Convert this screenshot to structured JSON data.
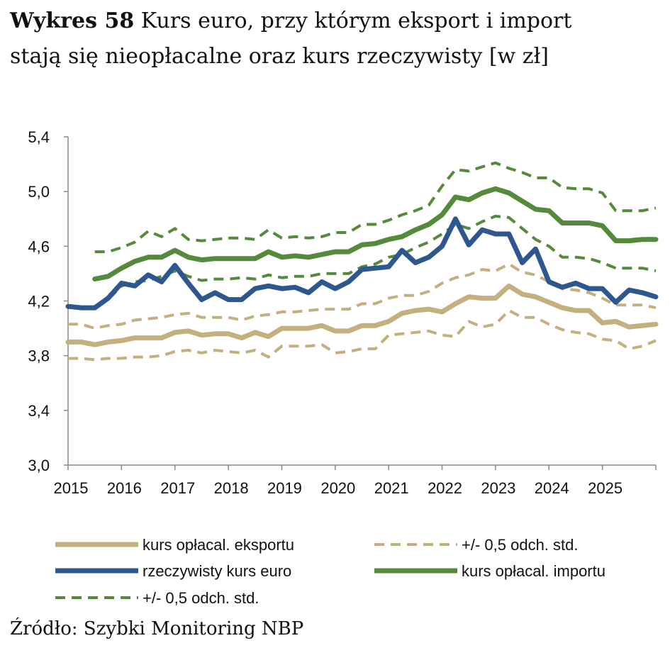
{
  "title_bold": "Wykres 58",
  "title_rest": " Kurs euro, przy którym eksport i import",
  "title_line2": "stają się nieopłacalne oraz kurs rzeczywisty [w zł]",
  "source": "Źródło: Szybki Monitoring NBP",
  "colors": {
    "export": "#C4B07F",
    "real": "#2E5790",
    "import": "#548A3A"
  },
  "chart_data": {
    "type": "line",
    "title": "Kurs euro, przy którym eksport i import stają się nieopłacalne oraz kurs rzeczywisty [w zł]",
    "xlabel": "",
    "ylabel": "",
    "frequency": "quarterly",
    "x_start": 2015.0,
    "x_step": 0.25,
    "xlim": [
      2015,
      2026
    ],
    "ylim": [
      3.0,
      5.4
    ],
    "x_tick_labels": [
      "2015",
      "2016",
      "2017",
      "2018",
      "2019",
      "2020",
      "2021",
      "2022",
      "2023",
      "2024",
      "2025"
    ],
    "y_tick_labels": [
      "3,0",
      "3,4",
      "3,8",
      "4,2",
      "4,6",
      "5,0",
      "5,4"
    ],
    "y_ticks": [
      3.0,
      3.4,
      3.8,
      4.2,
      4.6,
      5.0,
      5.4
    ],
    "grid": false,
    "legend_position": "bottom",
    "series": [
      {
        "name": "kurs opłacal. eksportu",
        "color": "#C4B07F",
        "style": "solid",
        "values": [
          3.9,
          3.9,
          3.88,
          3.9,
          3.91,
          3.93,
          3.93,
          3.93,
          3.97,
          3.98,
          3.95,
          3.96,
          3.96,
          3.93,
          3.97,
          3.94,
          4.0,
          4.0,
          4.0,
          4.02,
          3.98,
          3.98,
          4.02,
          4.02,
          4.05,
          4.11,
          4.13,
          4.14,
          4.12,
          4.18,
          4.23,
          4.22,
          4.22,
          4.31,
          4.25,
          4.23,
          4.19,
          4.15,
          4.13,
          4.13,
          4.04,
          4.05,
          4.01,
          4.02,
          4.03
        ]
      },
      {
        "name": "+/- 0,5 odch. std.",
        "color": "#C4B07F",
        "style": "dashed",
        "values": [
          4.03,
          4.03,
          4.0,
          4.02,
          4.03,
          4.06,
          4.07,
          4.08,
          4.1,
          4.11,
          4.08,
          4.08,
          4.08,
          4.06,
          4.09,
          4.1,
          4.12,
          4.12,
          4.13,
          4.14,
          4.14,
          4.14,
          4.18,
          4.18,
          4.22,
          4.24,
          4.24,
          4.27,
          4.33,
          4.37,
          4.39,
          4.43,
          4.42,
          4.47,
          4.41,
          4.39,
          4.34,
          4.29,
          4.28,
          4.26,
          4.22,
          4.17,
          4.17,
          4.17,
          4.15
        ]
      },
      {
        "name": "",
        "color": "#C4B07F",
        "style": "dashed",
        "values": [
          3.78,
          3.78,
          3.77,
          3.78,
          3.78,
          3.79,
          3.79,
          3.8,
          3.83,
          3.84,
          3.82,
          3.84,
          3.83,
          3.82,
          3.84,
          3.79,
          3.87,
          3.87,
          3.87,
          3.88,
          3.82,
          3.83,
          3.85,
          3.85,
          3.95,
          3.96,
          3.97,
          3.98,
          3.95,
          3.94,
          4.05,
          4.01,
          4.03,
          4.13,
          4.08,
          4.08,
          4.03,
          3.99,
          3.97,
          3.96,
          3.92,
          3.91,
          3.85,
          3.87,
          3.91
        ]
      },
      {
        "name": "rzeczywisty kurs euro",
        "color": "#2E5790",
        "style": "solid",
        "values": [
          4.16,
          4.15,
          4.15,
          4.22,
          4.33,
          4.31,
          4.39,
          4.34,
          4.46,
          4.33,
          4.21,
          4.26,
          4.21,
          4.21,
          4.29,
          4.31,
          4.29,
          4.3,
          4.26,
          4.34,
          4.29,
          4.34,
          4.43,
          4.44,
          4.45,
          4.57,
          4.48,
          4.52,
          4.6,
          4.8,
          4.61,
          4.72,
          4.69,
          4.69,
          4.48,
          4.58,
          4.34,
          4.3,
          4.33,
          4.29,
          4.29,
          4.19,
          4.28,
          4.26,
          4.23
        ]
      },
      {
        "name": "kurs opłacal. importu",
        "color": "#548A3A",
        "style": "solid",
        "values": [
          null,
          null,
          4.36,
          4.38,
          4.44,
          4.49,
          4.52,
          4.52,
          4.57,
          4.52,
          4.5,
          4.51,
          4.51,
          4.51,
          4.51,
          4.56,
          4.52,
          4.53,
          4.52,
          4.54,
          4.56,
          4.56,
          4.61,
          4.62,
          4.65,
          4.67,
          4.72,
          4.76,
          4.83,
          4.96,
          4.94,
          4.99,
          5.02,
          4.99,
          4.93,
          4.87,
          4.86,
          4.77,
          4.77,
          4.77,
          4.75,
          4.64,
          4.64,
          4.65,
          4.65
        ]
      },
      {
        "name": "+/- 0,5 odch. std.",
        "color": "#548A3A",
        "style": "dashed",
        "values": [
          null,
          null,
          4.56,
          4.56,
          4.59,
          4.63,
          4.71,
          4.67,
          4.73,
          4.65,
          4.64,
          4.65,
          4.66,
          4.66,
          4.65,
          4.72,
          4.66,
          4.67,
          4.66,
          4.67,
          4.7,
          4.7,
          4.76,
          4.76,
          4.79,
          4.83,
          4.86,
          4.9,
          5.04,
          5.16,
          5.15,
          5.18,
          5.21,
          5.17,
          5.14,
          5.1,
          5.1,
          5.03,
          5.02,
          5.02,
          4.99,
          4.86,
          4.86,
          4.86,
          4.88
        ]
      },
      {
        "name": "",
        "color": "#548A3A",
        "style": "dashed",
        "values": [
          null,
          null,
          4.16,
          4.21,
          4.31,
          4.34,
          4.35,
          4.38,
          4.42,
          4.38,
          4.35,
          4.36,
          4.36,
          4.37,
          4.36,
          4.39,
          4.37,
          4.38,
          4.38,
          4.4,
          4.4,
          4.4,
          4.45,
          4.47,
          4.52,
          4.54,
          4.59,
          4.63,
          4.69,
          4.76,
          4.73,
          4.78,
          4.82,
          4.81,
          4.73,
          4.65,
          4.6,
          4.52,
          4.52,
          4.51,
          4.48,
          4.44,
          4.44,
          4.44,
          4.42
        ]
      }
    ]
  },
  "legend": [
    {
      "label": "kurs opłacal. eksportu",
      "color": "#C4B07F",
      "style": "solid"
    },
    {
      "label": "+/- 0,5 odch. std.",
      "color": "#C4B07F",
      "style": "dashed"
    },
    {
      "label": "rzeczywisty kurs euro",
      "color": "#2E5790",
      "style": "solid"
    },
    {
      "label": "kurs opłacal. importu",
      "color": "#548A3A",
      "style": "solid"
    },
    {
      "label": "+/- 0,5 odch. std.",
      "color": "#548A3A",
      "style": "dashed"
    }
  ]
}
